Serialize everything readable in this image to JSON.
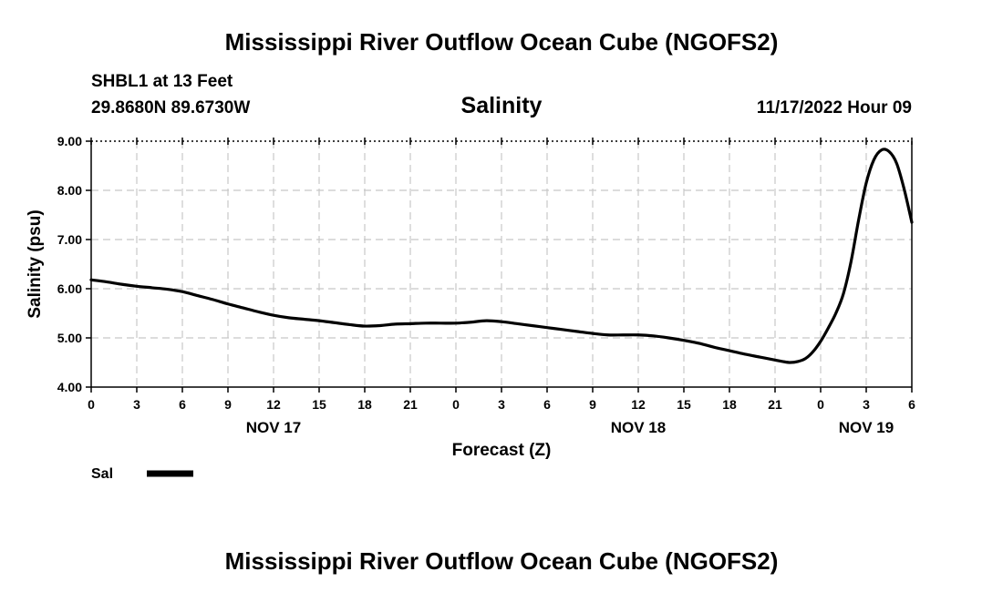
{
  "header": {
    "main_title": "Mississippi River Outflow Ocean Cube (NGOFS2)",
    "station": "SHBL1 at 13 Feet",
    "coordinates": "29.8680N  89.6730W",
    "plot_title": "Salinity",
    "timestamp": "11/17/2022 Hour 09"
  },
  "footer": {
    "main_title": "Mississippi River Outflow Ocean Cube (NGOFS2)"
  },
  "legend": {
    "label": "Sal",
    "color": "#000000"
  },
  "chart_data": {
    "type": "line",
    "title": "Salinity",
    "xlabel": "Forecast (Z)",
    "ylabel": "Salinity (psu)",
    "xlim": [
      0,
      54
    ],
    "ylim": [
      4.0,
      9.0
    ],
    "grid": true,
    "x_ticks": [
      0,
      3,
      6,
      9,
      12,
      15,
      18,
      21,
      24,
      27,
      30,
      33,
      36,
      39,
      42,
      45,
      48,
      51,
      54
    ],
    "x_tick_labels": [
      "0",
      "3",
      "6",
      "9",
      "12",
      "15",
      "18",
      "21",
      "0",
      "3",
      "6",
      "9",
      "12",
      "15",
      "18",
      "21",
      "0",
      "3",
      "6"
    ],
    "y_ticks": [
      4.0,
      5.0,
      6.0,
      7.0,
      8.0,
      9.0
    ],
    "y_tick_labels": [
      "4.00",
      "5.00",
      "6.00",
      "7.00",
      "8.00",
      "9.00"
    ],
    "date_labels": [
      {
        "x": 12,
        "label": "NOV 17"
      },
      {
        "x": 36,
        "label": "NOV 18"
      },
      {
        "x": 51,
        "label": "NOV 19"
      }
    ],
    "series": [
      {
        "name": "Sal",
        "x": [
          0,
          1,
          2,
          3,
          4,
          5,
          6,
          7,
          8,
          9,
          10,
          11,
          12,
          13,
          14,
          15,
          16,
          17,
          18,
          19,
          20,
          21,
          22,
          23,
          24,
          25,
          26,
          27,
          28,
          29,
          30,
          31,
          32,
          33,
          34,
          35,
          36,
          37,
          38,
          39,
          40,
          41,
          42,
          43,
          44,
          45,
          45.5,
          46,
          46.5,
          47,
          47.5,
          48,
          48.5,
          49,
          49.5,
          50,
          50.5,
          51,
          51.5,
          52,
          52.5,
          53,
          53.5,
          54
        ],
        "values": [
          6.18,
          6.14,
          6.09,
          6.05,
          6.02,
          5.99,
          5.94,
          5.86,
          5.78,
          5.69,
          5.61,
          5.53,
          5.46,
          5.41,
          5.38,
          5.35,
          5.31,
          5.27,
          5.24,
          5.25,
          5.28,
          5.29,
          5.3,
          5.3,
          5.3,
          5.32,
          5.35,
          5.33,
          5.29,
          5.25,
          5.21,
          5.17,
          5.13,
          5.09,
          5.06,
          5.06,
          5.06,
          5.04,
          5.0,
          4.95,
          4.89,
          4.81,
          4.74,
          4.67,
          4.61,
          4.55,
          4.52,
          4.5,
          4.52,
          4.58,
          4.72,
          4.93,
          5.2,
          5.5,
          5.9,
          6.55,
          7.4,
          8.15,
          8.62,
          8.82,
          8.79,
          8.55,
          8.02,
          7.35
        ]
      }
    ]
  }
}
